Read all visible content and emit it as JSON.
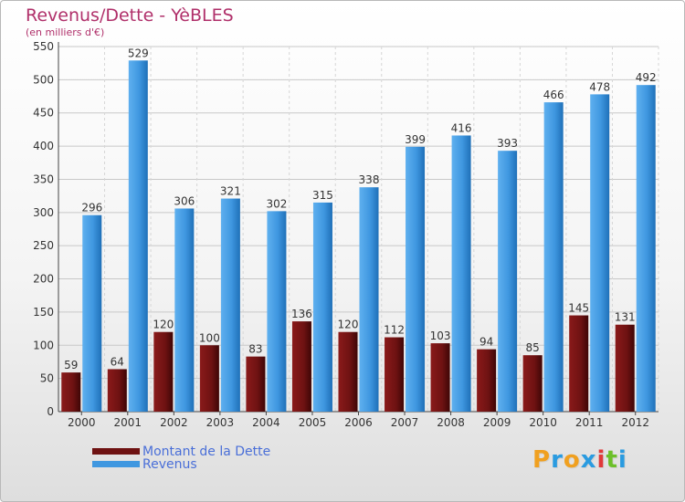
{
  "title": "Revenus/Dette - YèBLES",
  "subtitle": "(en milliers d'€)",
  "colors": {
    "title": "#b0306a",
    "dette": "#6e1212",
    "revenus": "#3f97e0",
    "legend_text": "#4a6fd8"
  },
  "legend": [
    {
      "label": "Montant de la Dette",
      "color": "#6e1212"
    },
    {
      "label": "Revenus",
      "color": "#3f97e0"
    }
  ],
  "logo": {
    "letters": [
      "P",
      "r",
      "o",
      "x",
      "i",
      "t",
      "i"
    ],
    "colors": [
      "#f0a020",
      "#2a9be0",
      "#f0a020",
      "#2a9be0",
      "#e03a3a",
      "#6cc02a",
      "#2a9be0"
    ]
  },
  "chart_data": {
    "type": "bar",
    "categories": [
      "2000",
      "2001",
      "2002",
      "2003",
      "2004",
      "2005",
      "2006",
      "2007",
      "2008",
      "2009",
      "2010",
      "2011",
      "2012"
    ],
    "series": [
      {
        "name": "Montant de la Dette",
        "values": [
          59,
          64,
          120,
          100,
          83,
          136,
          120,
          112,
          103,
          94,
          85,
          145,
          131
        ]
      },
      {
        "name": "Revenus",
        "values": [
          296,
          529,
          306,
          321,
          302,
          315,
          338,
          399,
          416,
          393,
          466,
          478,
          492
        ]
      }
    ],
    "title": "Revenus/Dette - YèBLES",
    "ylabel": "(en milliers d'€)",
    "ylim": [
      0,
      550
    ],
    "yticks": [
      0,
      50,
      100,
      150,
      200,
      250,
      300,
      350,
      400,
      450,
      500,
      550
    ],
    "grid": true,
    "legend_position": "bottom-left"
  }
}
